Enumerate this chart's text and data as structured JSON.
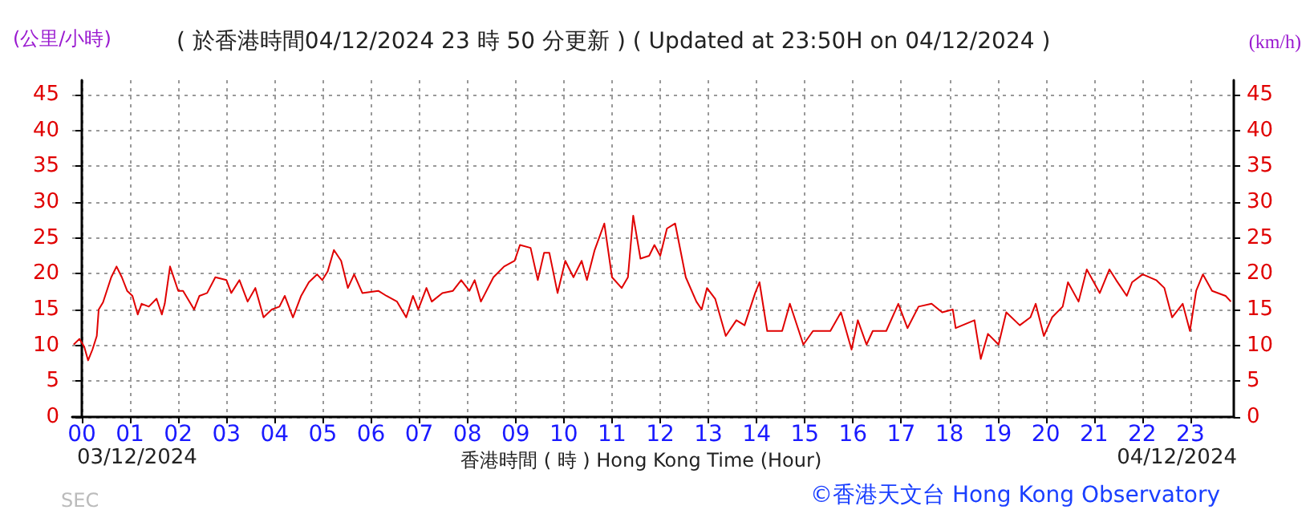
{
  "chart_data": {
    "type": "line",
    "title": "( 於香港時間04/12/2024 23 時 50 分更新 ) ( Updated at 23:50H on 04/12/2024 )",
    "xlabel": "香港時間 ( 時 ) Hong Kong Time (Hour)",
    "ylabel": "(公里/小時)",
    "y2label": "(km/h)",
    "annotations": [
      "03/12/2024",
      "04/12/2024",
      "©香港天文台 Hong Kong Observatory",
      "SEC"
    ],
    "x": [
      -0.17,
      -0.05,
      0.05,
      0.13,
      0.22,
      0.31,
      0.35,
      0.44,
      0.61,
      0.72,
      0.83,
      0.94,
      1.05,
      1.16,
      1.24,
      1.39,
      1.55,
      1.66,
      1.72,
      1.83,
      2.0,
      2.1,
      2.33,
      2.44,
      2.6,
      2.77,
      3.0,
      3.1,
      3.27,
      3.44,
      3.6,
      3.77,
      3.94,
      4.1,
      4.21,
      4.38,
      4.55,
      4.71,
      4.88,
      4.99,
      5.1,
      5.23,
      5.38,
      5.52,
      5.65,
      5.82,
      6.15,
      6.32,
      6.54,
      6.73,
      6.87,
      6.98,
      7.15,
      7.26,
      7.48,
      7.7,
      7.87,
      8.04,
      8.15,
      8.28,
      8.54,
      8.76,
      8.98,
      9.09,
      9.31,
      9.46,
      9.59,
      9.7,
      9.87,
      10.03,
      10.2,
      10.37,
      10.48,
      10.64,
      10.84,
      11.0,
      11.2,
      11.33,
      11.44,
      11.59,
      11.77,
      11.88,
      12.0,
      12.14,
      12.31,
      12.53,
      12.75,
      12.86,
      12.97,
      13.14,
      13.36,
      13.58,
      13.75,
      13.97,
      14.06,
      14.22,
      14.53,
      14.69,
      14.97,
      15.17,
      15.53,
      15.75,
      15.97,
      16.1,
      16.28,
      16.41,
      16.69,
      16.94,
      17.13,
      17.36,
      17.63,
      17.85,
      18.07,
      18.13,
      18.52,
      18.65,
      18.8,
      19.02,
      19.18,
      19.46,
      19.68,
      19.79,
      19.96,
      20.13,
      20.35,
      20.46,
      20.68,
      20.85,
      21.12,
      21.32,
      21.46,
      21.68,
      21.79,
      22.01,
      22.29,
      22.46,
      22.62,
      22.84,
      22.99,
      23.12,
      23.26,
      23.45,
      23.73,
      23.84
    ],
    "series": [
      {
        "color": "#e00000",
        "values": [
          10.1,
          10.9,
          9.8,
          7.9,
          9.4,
          11.3,
          15,
          16,
          19.5,
          21,
          19.5,
          17.6,
          16.9,
          14.3,
          15.8,
          15.4,
          16.5,
          14.3,
          15.8,
          21,
          17.6,
          17.6,
          15,
          16.9,
          17.3,
          19.5,
          19.1,
          17.3,
          19.1,
          16.1,
          18,
          13.9,
          15,
          15.4,
          16.9,
          13.9,
          16.9,
          18.8,
          19.9,
          19.1,
          20.3,
          23.3,
          21.8,
          18,
          19.9,
          17.3,
          17.6,
          16.9,
          16.1,
          13.9,
          16.9,
          15,
          18,
          16.1,
          17.3,
          17.6,
          19.1,
          17.6,
          19.1,
          16.1,
          19.5,
          21,
          21.8,
          24,
          23.6,
          19.1,
          22.9,
          22.9,
          17.3,
          21.8,
          19.5,
          21.8,
          19.1,
          23.3,
          27,
          19.5,
          18,
          19.5,
          28.1,
          22.1,
          22.5,
          24,
          22.5,
          26.3,
          27,
          19.5,
          16.1,
          15,
          18,
          16.5,
          11.3,
          13.5,
          12.8,
          17.3,
          18.8,
          12,
          12,
          15.8,
          10.1,
          12,
          12,
          14.6,
          9.4,
          13.5,
          10.1,
          12,
          12,
          15.8,
          12.4,
          15.4,
          15.8,
          14.6,
          15,
          12.4,
          13.5,
          8.1,
          11.6,
          10.1,
          14.6,
          12.8,
          13.9,
          15.8,
          11.3,
          13.9,
          15.4,
          18.8,
          16.1,
          20.6,
          17.3,
          20.6,
          19.1,
          16.9,
          18.8,
          19.9,
          19.1,
          18,
          13.9,
          15.8,
          12,
          17.6,
          19.9,
          17.6,
          16.9,
          16.1
        ]
      }
    ],
    "xlim": [
      -0.2,
      23.9
    ],
    "xticks": [
      {
        "value": 0,
        "label": "00"
      },
      {
        "value": 1,
        "label": "01"
      },
      {
        "value": 2,
        "label": "02"
      },
      {
        "value": 3,
        "label": "03"
      },
      {
        "value": 4,
        "label": "04"
      },
      {
        "value": 5,
        "label": "05"
      },
      {
        "value": 6,
        "label": "06"
      },
      {
        "value": 7,
        "label": "07"
      },
      {
        "value": 8,
        "label": "08"
      },
      {
        "value": 9,
        "label": "09"
      },
      {
        "value": 10,
        "label": "10"
      },
      {
        "value": 11,
        "label": "11"
      },
      {
        "value": 12,
        "label": "12"
      },
      {
        "value": 13,
        "label": "13"
      },
      {
        "value": 14,
        "label": "14"
      },
      {
        "value": 15,
        "label": "15"
      },
      {
        "value": 16,
        "label": "16"
      },
      {
        "value": 17,
        "label": "17"
      },
      {
        "value": 18,
        "label": "18"
      },
      {
        "value": 19,
        "label": "19"
      },
      {
        "value": 20,
        "label": "20"
      },
      {
        "value": 21,
        "label": "21"
      },
      {
        "value": 22,
        "label": "22"
      },
      {
        "value": 23,
        "label": "23"
      }
    ],
    "ylim": [
      0,
      47
    ],
    "yticks": [
      0,
      5,
      10,
      15,
      20,
      25,
      30,
      35,
      40,
      45
    ],
    "y2lim": [
      0,
      47
    ],
    "y2ticks": [
      0,
      5,
      10,
      15,
      20,
      25,
      30,
      35,
      40,
      45
    ],
    "grid": true,
    "marker": "none",
    "line_style": "solid"
  }
}
